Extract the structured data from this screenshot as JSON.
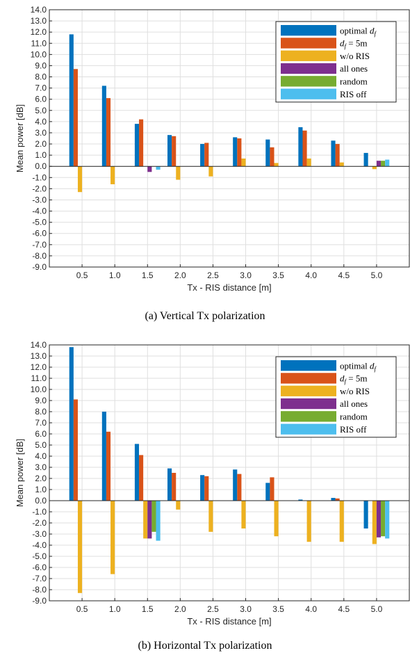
{
  "chart_data": [
    {
      "type": "bar",
      "caption": "(a) Vertical Tx polarization",
      "xlabel": "Tx - RIS distance [m]",
      "ylabel": "Mean power [dB]",
      "ylim": [
        -9,
        14
      ],
      "yticks": [
        "14.0",
        "13.0",
        "12.0",
        "11.0",
        "10.0",
        "9.0",
        "8.0",
        "7.0",
        "6.0",
        "5.0",
        "4.0",
        "3.0",
        "2.0",
        "1.0",
        "0.0",
        "-1.0",
        "-2.0",
        "-3.0",
        "-4.0",
        "-5.0",
        "-6.0",
        "-7.0",
        "-8.0",
        "-9.0"
      ],
      "categories": [
        "0.5",
        "1.0",
        "1.5",
        "2.0",
        "2.5",
        "3.0",
        "3.5",
        "4.0",
        "4.5",
        "5.0"
      ],
      "grid": true,
      "legend_position": "top-right",
      "series": [
        {
          "name": "optimal d_f",
          "color": "#0072BD",
          "values": [
            11.8,
            7.2,
            3.8,
            2.8,
            2.0,
            2.6,
            2.4,
            3.5,
            2.3,
            1.2
          ]
        },
        {
          "name": "d_f = 5m",
          "color": "#D95319",
          "values": [
            8.7,
            6.1,
            4.2,
            2.7,
            2.1,
            2.5,
            1.7,
            3.2,
            2.0,
            0.0
          ]
        },
        {
          "name": "w/o RIS",
          "color": "#EDB120",
          "values": [
            -2.3,
            -1.6,
            0.0,
            -1.2,
            -0.9,
            0.7,
            0.3,
            0.7,
            0.35,
            -0.25
          ]
        },
        {
          "name": "all ones",
          "color": "#7E2F8E",
          "values": [
            0.0,
            0.0,
            -0.5,
            0.0,
            0.0,
            0.0,
            0.0,
            0.0,
            0.0,
            0.5
          ]
        },
        {
          "name": "random",
          "color": "#77AC30",
          "values": [
            0.0,
            0.0,
            0.0,
            0.0,
            0.0,
            0.0,
            0.0,
            0.0,
            0.0,
            0.5
          ]
        },
        {
          "name": "RIS off",
          "color": "#4DBEEE",
          "values": [
            0.0,
            0.0,
            -0.3,
            0.0,
            0.0,
            0.0,
            0.0,
            0.0,
            0.0,
            0.6
          ]
        }
      ]
    },
    {
      "type": "bar",
      "caption": "(b) Horizontal Tx polarization",
      "xlabel": "Tx - RIS distance [m]",
      "ylabel": "Mean power [dB]",
      "ylim": [
        -9,
        14
      ],
      "yticks": [
        "14.0",
        "13.0",
        "12.0",
        "11.0",
        "10.0",
        "9.0",
        "8.0",
        "7.0",
        "6.0",
        "5.0",
        "4.0",
        "3.0",
        "2.0",
        "1.0",
        "0.0",
        "-1.0",
        "-2.0",
        "-3.0",
        "-4.0",
        "-5.0",
        "-6.0",
        "-7.0",
        "-8.0",
        "-9.0"
      ],
      "categories": [
        "0.5",
        "1.0",
        "1.5",
        "2.0",
        "2.5",
        "3.0",
        "3.5",
        "4.0",
        "4.5",
        "5.0"
      ],
      "grid": true,
      "legend_position": "top-right",
      "series": [
        {
          "name": "optimal d_f",
          "color": "#0072BD",
          "values": [
            13.8,
            8.0,
            5.1,
            2.9,
            2.3,
            2.8,
            1.6,
            0.1,
            0.25,
            -2.5
          ]
        },
        {
          "name": "d_f = 5m",
          "color": "#D95319",
          "values": [
            9.1,
            6.2,
            4.1,
            2.5,
            2.2,
            2.4,
            2.1,
            0.0,
            0.2,
            0.0
          ]
        },
        {
          "name": "w/o RIS",
          "color": "#EDB120",
          "values": [
            -8.3,
            -6.6,
            -3.4,
            -0.8,
            -2.8,
            -2.5,
            -3.2,
            -3.7,
            -3.7,
            -3.9
          ]
        },
        {
          "name": "all ones",
          "color": "#7E2F8E",
          "values": [
            0.0,
            0.0,
            -3.4,
            0.0,
            0.0,
            0.0,
            0.0,
            0.0,
            0.0,
            -3.3
          ]
        },
        {
          "name": "random",
          "color": "#77AC30",
          "values": [
            0.0,
            0.0,
            -2.8,
            0.0,
            0.0,
            0.0,
            0.0,
            0.0,
            0.0,
            -3.2
          ]
        },
        {
          "name": "RIS off",
          "color": "#4DBEEE",
          "values": [
            0.0,
            0.0,
            -3.6,
            0.0,
            0.0,
            0.0,
            0.0,
            0.0,
            0.0,
            -3.4
          ]
        }
      ]
    }
  ]
}
